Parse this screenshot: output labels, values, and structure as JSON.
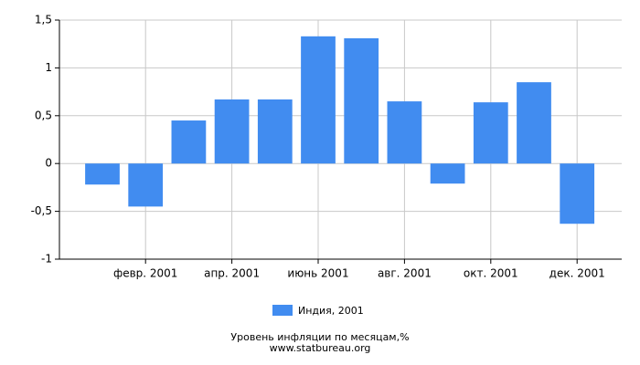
{
  "chart_data": {
    "type": "bar",
    "title": "Уровень инфляции по месяцам,%",
    "source": "www.statbureau.org",
    "categories": [
      null,
      "февр. 2001",
      null,
      "апр. 2001",
      null,
      "июнь 2001",
      null,
      "авг. 2001",
      null,
      "окт. 2001",
      null,
      "дек. 2001"
    ],
    "series": [
      {
        "name": "Индия, 2001",
        "color": "#418cf0",
        "values": [
          -0.22,
          -0.45,
          0.45,
          0.67,
          0.67,
          1.33,
          1.31,
          0.65,
          -0.21,
          0.64,
          0.85,
          -0.63
        ]
      }
    ],
    "ylim": [
      -1,
      1.5
    ],
    "yticks": [
      {
        "value": -1,
        "label": "-1"
      },
      {
        "value": -0.5,
        "label": "-0,5"
      },
      0,
      {
        "value": 0.5,
        "label": "0,5"
      },
      1,
      {
        "value": 1.5,
        "label": "1,5"
      }
    ],
    "grid": true
  }
}
